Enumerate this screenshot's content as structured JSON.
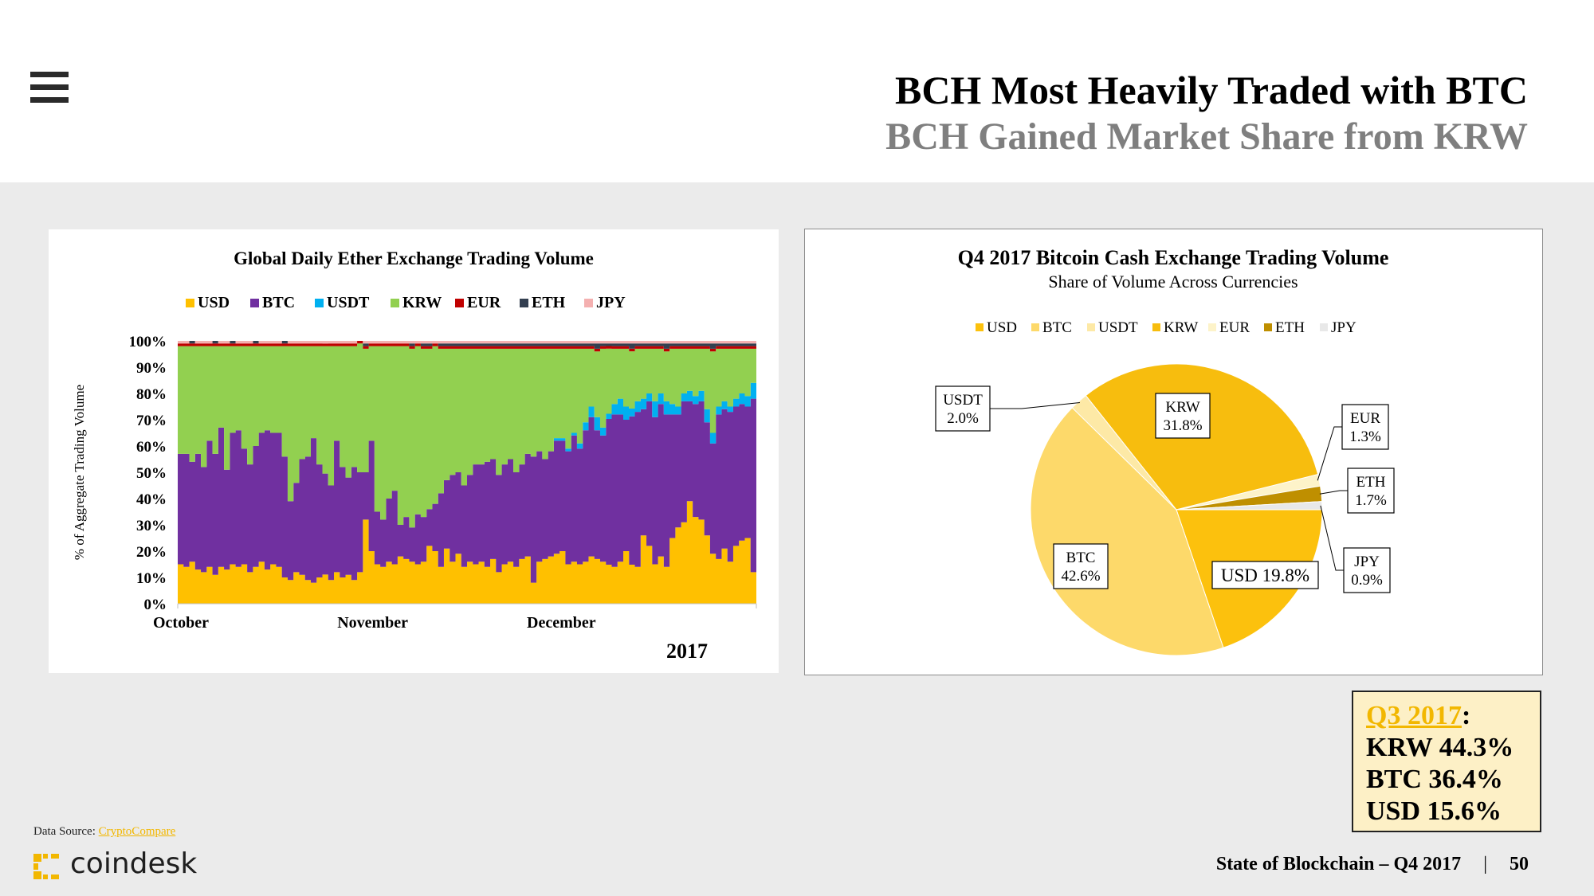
{
  "header": {
    "title": "BCH Most Heavily Traded with BTC",
    "subtitle": "BCH Gained Market Share from KRW"
  },
  "icons": {
    "menu": "hamburger-menu-icon",
    "logo": "coindesk-logo-icon"
  },
  "colors": {
    "USD": "#ffc000",
    "BTC": "#7030a0",
    "USDT": "#00b0f0",
    "KRW": "#92d050",
    "EUR": "#c00000",
    "ETH": "#333f50",
    "JPY": "#f4b0b0",
    "pie_USD": "#fcc10d",
    "pie_BTC": "#fdd96a",
    "pie_USDT": "#fde9a6",
    "pie_KRW": "#f7bd0e",
    "pie_EUR": "#fdf3c9",
    "pie_ETH": "#bf8f00",
    "pie_JPY": "#e8e8e8"
  },
  "chart_data": [
    {
      "type": "area",
      "title": "Global Daily Ether Exchange Trading Volume",
      "ylabel": "% of Aggregate Trading Volume",
      "xlabel": "2017",
      "ylim": [
        0,
        100
      ],
      "y_ticks": [
        "0%",
        "10%",
        "20%",
        "30%",
        "40%",
        "50%",
        "60%",
        "70%",
        "80%",
        "90%",
        "100%"
      ],
      "x_ticks": [
        "October",
        "November",
        "December"
      ],
      "legend": [
        "USD",
        "BTC",
        "USDT",
        "KRW",
        "EUR",
        "ETH",
        "JPY"
      ],
      "legend_position": "top",
      "stacked_percent": true,
      "series": [
        {
          "name": "USD",
          "values": [
            15,
            14,
            16,
            13,
            12,
            14,
            11,
            14,
            13,
            15,
            14,
            15,
            12,
            14,
            16,
            13,
            15,
            14,
            10,
            9,
            12,
            11,
            9,
            8,
            10,
            11,
            9,
            12,
            10,
            11,
            9,
            12,
            32,
            20,
            15,
            14,
            16,
            15,
            18,
            17,
            16,
            15,
            16,
            22,
            20,
            14,
            21,
            16,
            19,
            14,
            16,
            15,
            16,
            14,
            17,
            12,
            15,
            16,
            14,
            17,
            18,
            8,
            16,
            17,
            18,
            19,
            20,
            15,
            16,
            15,
            16,
            18,
            17,
            16,
            15,
            14,
            16,
            20,
            15,
            14,
            26,
            22,
            15,
            18,
            14,
            25,
            29,
            31,
            39,
            33,
            32,
            26,
            19,
            17,
            21,
            16,
            22,
            24,
            25,
            12
          ]
        },
        {
          "name": "BTC",
          "values": [
            42,
            43,
            38,
            44,
            40,
            48,
            46,
            53,
            38,
            50,
            52,
            44,
            41,
            46,
            49,
            53,
            50,
            51,
            46,
            30,
            34,
            44,
            47,
            55,
            43,
            38,
            36,
            50,
            42,
            37,
            43,
            38,
            18,
            42,
            20,
            18,
            24,
            28,
            12,
            16,
            13,
            19,
            17,
            14,
            18,
            28,
            26,
            33,
            31,
            31,
            33,
            38,
            37,
            40,
            38,
            37,
            38,
            39,
            36,
            36,
            39,
            48,
            42,
            38,
            40,
            43,
            42,
            43,
            48,
            44,
            50,
            53,
            49,
            48,
            56,
            58,
            56,
            50,
            57,
            59,
            48,
            55,
            56,
            58,
            58,
            47,
            43,
            46,
            38,
            43,
            45,
            43,
            42,
            55,
            53,
            57,
            53,
            52,
            50,
            66
          ]
        },
        {
          "name": "USDT",
          "values": [
            0,
            0,
            0,
            0,
            0,
            0,
            0,
            0,
            0,
            0,
            0,
            0,
            0,
            0,
            0,
            0,
            0,
            0,
            0,
            0,
            0,
            0,
            0,
            0,
            0,
            0,
            0,
            0,
            0,
            0,
            0,
            0,
            0,
            0,
            0,
            0,
            0,
            0,
            0,
            0,
            0,
            0,
            0,
            0,
            0,
            0,
            0,
            0,
            0,
            0,
            0,
            0,
            0,
            0,
            0,
            0,
            0,
            0,
            0,
            0,
            0,
            0,
            0,
            0,
            0,
            1,
            1,
            1,
            1,
            2,
            3,
            4,
            5,
            3,
            2,
            4,
            6,
            5,
            3,
            4,
            4,
            3,
            6,
            4,
            5,
            4,
            3,
            3,
            4,
            3,
            4,
            5,
            4,
            3,
            3,
            2,
            3,
            4,
            4,
            6
          ]
        },
        {
          "name": "KRW",
          "values": [
            41,
            41,
            44,
            41,
            46,
            36,
            41,
            31,
            47,
            33,
            32,
            39,
            45,
            38,
            33,
            32,
            33,
            33,
            42,
            59,
            52,
            43,
            42,
            35,
            45,
            48,
            53,
            36,
            46,
            50,
            46,
            49,
            47,
            36,
            63,
            66,
            58,
            55,
            68,
            65,
            68,
            64,
            64,
            61,
            60,
            55,
            50,
            48,
            47,
            52,
            48,
            44,
            44,
            43,
            42,
            48,
            44,
            42,
            47,
            44,
            40,
            41,
            39,
            42,
            39,
            34,
            34,
            38,
            32,
            36,
            28,
            22,
            25,
            30,
            25,
            21,
            19,
            22,
            22,
            20,
            19,
            17,
            20,
            17,
            19,
            21,
            22,
            17,
            16,
            18,
            16,
            23,
            31,
            22,
            20,
            22,
            19,
            17,
            18,
            13
          ]
        },
        {
          "name": "EUR",
          "values": [
            1,
            1,
            1,
            1,
            1,
            1,
            1,
            1,
            1,
            1,
            1,
            1,
            1,
            1,
            1,
            1,
            1,
            1,
            1,
            1,
            1,
            1,
            1,
            1,
            1,
            1,
            1,
            1,
            1,
            1,
            1,
            1,
            1,
            1,
            1,
            1,
            1,
            1,
            1,
            1,
            1,
            1,
            1,
            1,
            1,
            1,
            1,
            1,
            1,
            1,
            1,
            1,
            1,
            1,
            1,
            1,
            1,
            1,
            1,
            1,
            1,
            1,
            1,
            1,
            1,
            1,
            1,
            1,
            1,
            1,
            1,
            1,
            1,
            1,
            1,
            1,
            1,
            1,
            1,
            1,
            1,
            1,
            1,
            1,
            1,
            1,
            1,
            1,
            1,
            1,
            1,
            1,
            1,
            1,
            1,
            1,
            1,
            1,
            1,
            1
          ]
        },
        {
          "name": "ETH",
          "values": [
            0,
            0,
            1,
            0,
            0,
            0,
            1,
            0,
            0,
            1,
            0,
            0,
            0,
            1,
            0,
            0,
            0,
            0,
            1,
            0,
            0,
            0,
            0,
            0,
            0,
            0,
            0,
            0,
            0,
            0,
            0,
            0,
            1,
            0,
            0,
            0,
            0,
            0,
            0,
            0,
            1,
            0,
            1,
            1,
            0,
            1,
            1,
            1,
            1,
            1,
            1,
            1,
            1,
            1,
            1,
            1,
            1,
            1,
            1,
            1,
            1,
            1,
            1,
            1,
            1,
            1,
            1,
            1,
            1,
            1,
            1,
            1,
            2,
            1,
            1,
            1,
            1,
            1,
            2,
            1,
            1,
            1,
            1,
            1,
            2,
            1,
            1,
            1,
            1,
            1,
            1,
            1,
            2,
            1,
            1,
            1,
            1,
            1,
            1,
            1
          ]
        },
        {
          "name": "JPY",
          "values": [
            1,
            1,
            0,
            1,
            1,
            1,
            0,
            1,
            1,
            0,
            1,
            1,
            1,
            0,
            1,
            1,
            1,
            1,
            0,
            1,
            1,
            1,
            1,
            1,
            1,
            1,
            1,
            1,
            1,
            1,
            1,
            0,
            1,
            1,
            1,
            1,
            1,
            1,
            1,
            1,
            1,
            1,
            1,
            1,
            1,
            1,
            1,
            1,
            1,
            1,
            1,
            1,
            1,
            1,
            1,
            1,
            1,
            1,
            1,
            1,
            1,
            1,
            1,
            1,
            1,
            1,
            1,
            1,
            1,
            1,
            1,
            1,
            1,
            1,
            1,
            1,
            1,
            1,
            1,
            1,
            1,
            1,
            1,
            1,
            1,
            1,
            1,
            1,
            1,
            1,
            1,
            1,
            1,
            1,
            1,
            1,
            1,
            1,
            1,
            1
          ]
        }
      ]
    },
    {
      "type": "pie",
      "title": "Q4 2017 Bitcoin Cash Exchange Trading Volume",
      "subtitle": "Share of Volume Across Currencies",
      "legend": [
        "USD",
        "BTC",
        "USDT",
        "KRW",
        "EUR",
        "ETH",
        "JPY"
      ],
      "legend_position": "top",
      "slices": [
        {
          "label": "USD",
          "value": 19.8
        },
        {
          "label": "BTC",
          "value": 42.6
        },
        {
          "label": "USDT",
          "value": 2.0
        },
        {
          "label": "KRW",
          "value": 31.8
        },
        {
          "label": "EUR",
          "value": 1.3
        },
        {
          "label": "ETH",
          "value": 1.7
        },
        {
          "label": "JPY",
          "value": 0.9
        }
      ],
      "data_labels": {
        "USD": "USD 19.8%",
        "BTC": [
          "BTC",
          "42.6%"
        ],
        "USDT": [
          "USDT",
          "2.0%"
        ],
        "KRW": [
          "KRW",
          "31.8%"
        ],
        "EUR": [
          "EUR",
          "1.3%"
        ],
        "ETH": [
          "ETH",
          "1.7%"
        ],
        "JPY": [
          "JPY",
          "0.9%"
        ]
      }
    }
  ],
  "callout": {
    "quarter": "Q3 2017",
    "colon": ":",
    "lines": [
      "KRW 44.3%",
      "BTC 36.4%",
      "USD 15.6%"
    ]
  },
  "source": {
    "label": "Data Source: ",
    "link": "CryptoCompare"
  },
  "logo": {
    "text": "coindesk"
  },
  "footer": {
    "text": "State of Blockchain – Q4 2017",
    "separator": "|",
    "page": "50"
  }
}
